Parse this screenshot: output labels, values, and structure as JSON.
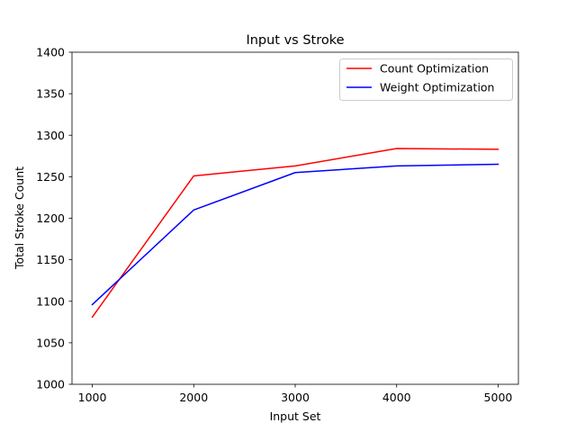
{
  "chart_data": {
    "type": "line",
    "title": "Input vs Stroke",
    "xlabel": "Input Set",
    "ylabel": "Total Stroke Count",
    "x": [
      1000,
      2000,
      3000,
      4000,
      5000
    ],
    "xticks": [
      1000,
      2000,
      3000,
      4000,
      5000
    ],
    "xlim": [
      800,
      5200
    ],
    "yticks": [
      1000,
      1050,
      1100,
      1150,
      1200,
      1250,
      1300,
      1350,
      1400
    ],
    "ylim": [
      1000,
      1400
    ],
    "grid": false,
    "legend_position": "top-right",
    "series": [
      {
        "name": "Count Optimization",
        "color": "#ff0000",
        "values": [
          1081,
          1251,
          1263,
          1284,
          1283
        ]
      },
      {
        "name": "Weight Optimization",
        "color": "#0000ff",
        "values": [
          1096,
          1210,
          1255,
          1263,
          1265
        ]
      }
    ]
  }
}
